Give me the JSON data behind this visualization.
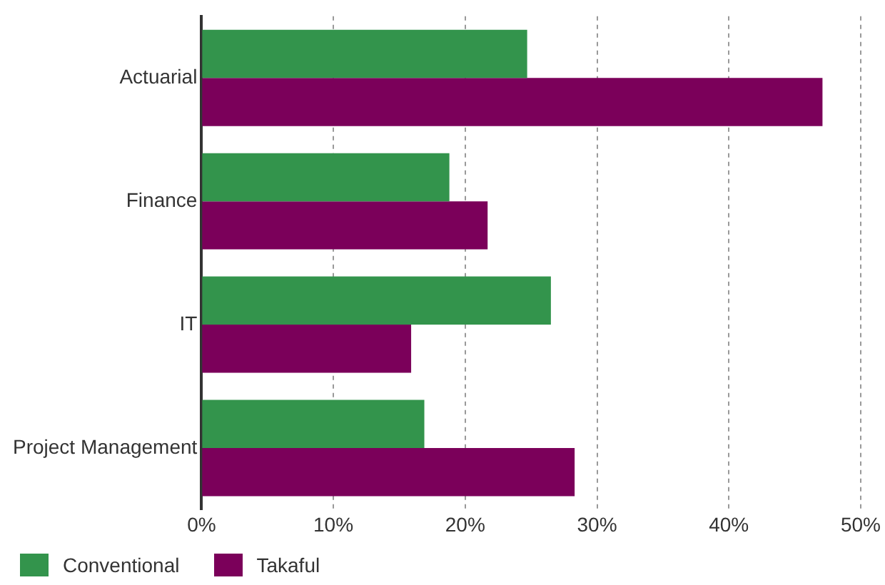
{
  "chart_data": {
    "type": "bar",
    "orientation": "horizontal",
    "categories": [
      "Actuarial",
      "Finance",
      "IT",
      "Project Management"
    ],
    "series": [
      {
        "name": "Conventional",
        "color": "#33944c",
        "values": [
          24.7,
          18.8,
          26.5,
          16.9
        ]
      },
      {
        "name": "Takaful",
        "color": "#7b005a",
        "values": [
          47.1,
          21.7,
          15.9,
          28.3
        ]
      }
    ],
    "xlim": [
      0,
      50
    ],
    "xticks": [
      {
        "value": 0,
        "label": "0%"
      },
      {
        "value": 10,
        "label": "10%"
      },
      {
        "value": 20,
        "label": "20%"
      },
      {
        "value": 30,
        "label": "30%"
      },
      {
        "value": 40,
        "label": "40%"
      },
      {
        "value": 50,
        "label": "50%"
      }
    ],
    "grid": "x",
    "legend": "bottom left"
  }
}
